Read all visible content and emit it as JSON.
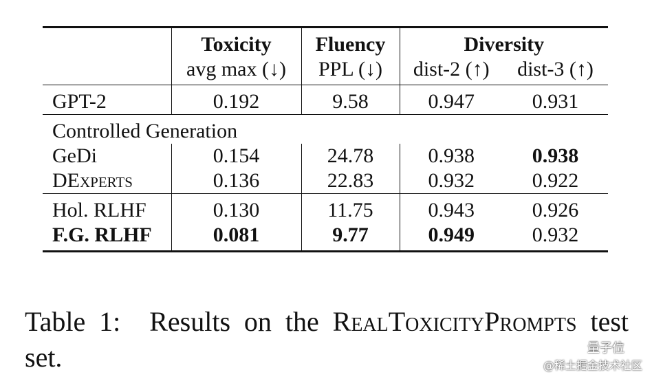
{
  "table": {
    "groups": [
      {
        "label": "Toxicity",
        "span": 1
      },
      {
        "label": "Fluency",
        "span": 1
      },
      {
        "label": "Diversity",
        "span": 2
      }
    ],
    "columns": [
      "avg max (↓)",
      "PPL (↓)",
      "dist-2 (↑)",
      "dist-3 (↑)"
    ],
    "sections": [
      {
        "rows": [
          {
            "name": "GPT-2",
            "cells": [
              "0.192",
              "9.58",
              "0.947",
              "0.931"
            ],
            "bold": []
          }
        ]
      },
      {
        "label": "Controlled Generation",
        "rows": [
          {
            "name": "GeDi",
            "cells": [
              "0.154",
              "24.78",
              "0.938",
              "0.938"
            ],
            "bold": [
              3
            ]
          },
          {
            "name": "DExperts",
            "small_caps": true,
            "cells": [
              "0.136",
              "22.83",
              "0.932",
              "0.922"
            ],
            "bold": []
          }
        ]
      },
      {
        "rows": [
          {
            "name": "Hol. RLHF",
            "cells": [
              "0.130",
              "11.75",
              "0.943",
              "0.926"
            ],
            "bold": []
          },
          {
            "name": "F.G. RLHF",
            "name_bold": true,
            "cells": [
              "0.081",
              "9.77",
              "0.949",
              "0.932"
            ],
            "bold": [
              0,
              1,
              2
            ]
          }
        ]
      }
    ]
  },
  "caption": {
    "label": "Table 1:",
    "before": "Results on the",
    "name": "RealToxicityPrompts",
    "after": "test set."
  },
  "watermark": {
    "brand": "量子位",
    "source": "@稀土掘金技术社区"
  }
}
